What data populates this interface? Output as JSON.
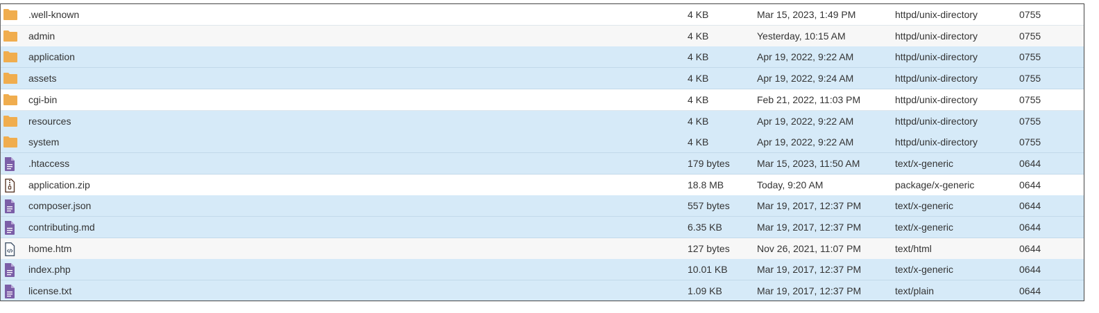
{
  "colors": {
    "folder": "#f0ad4e",
    "file": "#7b5ea7",
    "selected_row": "#d6eaf8",
    "alt_row": "#f7f7f7"
  },
  "files": [
    {
      "name": ".well-known",
      "icon": "folder-icon",
      "size": "4 KB",
      "date": "Mar 15, 2023, 1:49 PM",
      "type": "httpd/unix-directory",
      "perms": "0755",
      "state": "white"
    },
    {
      "name": "admin",
      "icon": "folder-icon",
      "size": "4 KB",
      "date": "Yesterday, 10:15 AM",
      "type": "httpd/unix-directory",
      "perms": "0755",
      "state": "alt"
    },
    {
      "name": "application",
      "icon": "folder-icon",
      "size": "4 KB",
      "date": "Apr 19, 2022, 9:22 AM",
      "type": "httpd/unix-directory",
      "perms": "0755",
      "state": "sel"
    },
    {
      "name": "assets",
      "icon": "folder-icon",
      "size": "4 KB",
      "date": "Apr 19, 2022, 9:24 AM",
      "type": "httpd/unix-directory",
      "perms": "0755",
      "state": "sel"
    },
    {
      "name": "cgi-bin",
      "icon": "folder-icon",
      "size": "4 KB",
      "date": "Feb 21, 2022, 11:03 PM",
      "type": "httpd/unix-directory",
      "perms": "0755",
      "state": "white"
    },
    {
      "name": "resources",
      "icon": "folder-icon",
      "size": "4 KB",
      "date": "Apr 19, 2022, 9:22 AM",
      "type": "httpd/unix-directory",
      "perms": "0755",
      "state": "sel"
    },
    {
      "name": "system",
      "icon": "folder-icon",
      "size": "4 KB",
      "date": "Apr 19, 2022, 9:22 AM",
      "type": "httpd/unix-directory",
      "perms": "0755",
      "state": "sel"
    },
    {
      "name": ".htaccess",
      "icon": "text-file-icon",
      "size": "179 bytes",
      "date": "Mar 15, 2023, 11:50 AM",
      "type": "text/x-generic",
      "perms": "0644",
      "state": "sel"
    },
    {
      "name": "application.zip",
      "icon": "zip-file-icon",
      "size": "18.8 MB",
      "date": "Today, 9:20 AM",
      "type": "package/x-generic",
      "perms": "0644",
      "state": "white"
    },
    {
      "name": "composer.json",
      "icon": "text-file-icon",
      "size": "557 bytes",
      "date": "Mar 19, 2017, 12:37 PM",
      "type": "text/x-generic",
      "perms": "0644",
      "state": "sel"
    },
    {
      "name": "contributing.md",
      "icon": "text-file-icon",
      "size": "6.35 KB",
      "date": "Mar 19, 2017, 12:37 PM",
      "type": "text/x-generic",
      "perms": "0644",
      "state": "sel"
    },
    {
      "name": "home.htm",
      "icon": "html-file-icon",
      "size": "127 bytes",
      "date": "Nov 26, 2021, 11:07 PM",
      "type": "text/html",
      "perms": "0644",
      "state": "alt"
    },
    {
      "name": "index.php",
      "icon": "text-file-icon",
      "size": "10.01 KB",
      "date": "Mar 19, 2017, 12:37 PM",
      "type": "text/x-generic",
      "perms": "0644",
      "state": "sel"
    },
    {
      "name": "license.txt",
      "icon": "text-file-icon",
      "size": "1.09 KB",
      "date": "Mar 19, 2017, 12:37 PM",
      "type": "text/plain",
      "perms": "0644",
      "state": "sel"
    }
  ]
}
